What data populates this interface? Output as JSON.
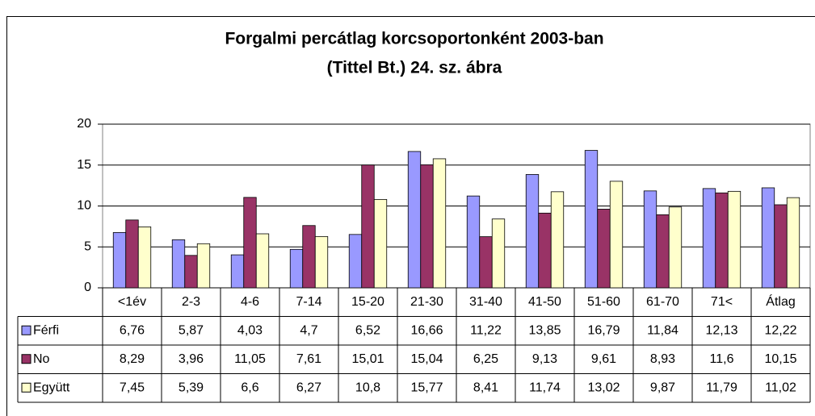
{
  "chart_data": {
    "type": "bar",
    "title": [
      "Forgalmi percátlag korcsoportonként 2003-ban",
      "(Tittel Bt.) 24. sz. ábra"
    ],
    "categories": [
      "<1év",
      "2-3",
      "4-6",
      "7-14",
      "15-20",
      "21-30",
      "31-40",
      "41-50",
      "51-60",
      "61-70",
      "71<",
      "Átlag"
    ],
    "series": [
      {
        "name": "Férfi",
        "color": "#9999ff",
        "values": [
          6.76,
          5.87,
          4.03,
          4.7,
          6.52,
          16.66,
          11.22,
          13.85,
          16.79,
          11.84,
          12.13,
          12.22
        ],
        "value_labels": [
          "6,76",
          "5,87",
          "4,03",
          "4,7",
          "6,52",
          "16,66",
          "11,22",
          "13,85",
          "16,79",
          "11,84",
          "12,13",
          "12,22"
        ]
      },
      {
        "name": "No",
        "color": "#993366",
        "values": [
          8.29,
          3.96,
          11.05,
          7.61,
          15.01,
          15.04,
          6.25,
          9.13,
          9.61,
          8.93,
          11.6,
          10.15
        ],
        "value_labels": [
          "8,29",
          "3,96",
          "11,05",
          "7,61",
          "15,01",
          "15,04",
          "6,25",
          "9,13",
          "9,61",
          "8,93",
          "11,6",
          "10,15"
        ]
      },
      {
        "name": "Együtt",
        "color": "#ffffcc",
        "values": [
          7.45,
          5.39,
          6.6,
          6.27,
          10.8,
          15.77,
          8.41,
          11.74,
          13.02,
          9.87,
          11.79,
          11.02
        ],
        "value_labels": [
          "7,45",
          "5,39",
          "6,6",
          "6,27",
          "10,8",
          "15,77",
          "8,41",
          "11,74",
          "13,02",
          "9,87",
          "11,79",
          "11,02"
        ]
      }
    ],
    "ylim": [
      0,
      20
    ],
    "yticks": [
      0,
      5,
      10,
      15,
      20
    ],
    "grid": true
  }
}
